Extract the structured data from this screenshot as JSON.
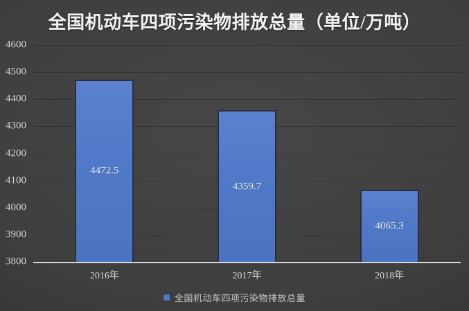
{
  "chart_data": {
    "type": "bar",
    "title": "全国机动车四项污染物排放总量（单位/万吨）",
    "categories": [
      "2016年",
      "2017年",
      "2018年"
    ],
    "values": [
      4472.5,
      4359.7,
      4065.3
    ],
    "value_labels": [
      "4472.5",
      "4359.7",
      "4065.3"
    ],
    "xlabel": "",
    "ylabel": "",
    "ylim": [
      3800,
      4600
    ],
    "yticks": [
      3800,
      3900,
      4000,
      4100,
      4200,
      4300,
      4400,
      4500,
      4600
    ],
    "grid": true,
    "legend_position": "bottom",
    "colors": {
      "bar": "#4f77c5",
      "bar_border": "#272e40",
      "background": "#3f3f3f",
      "axis_line": "#d9d9d9",
      "tick_text": "#dcdcdc",
      "title_text": "#f4f4f4"
    }
  },
  "legend": {
    "marker_color": "#4f77c5",
    "label": "全国机动车四项污染物排放总量"
  }
}
